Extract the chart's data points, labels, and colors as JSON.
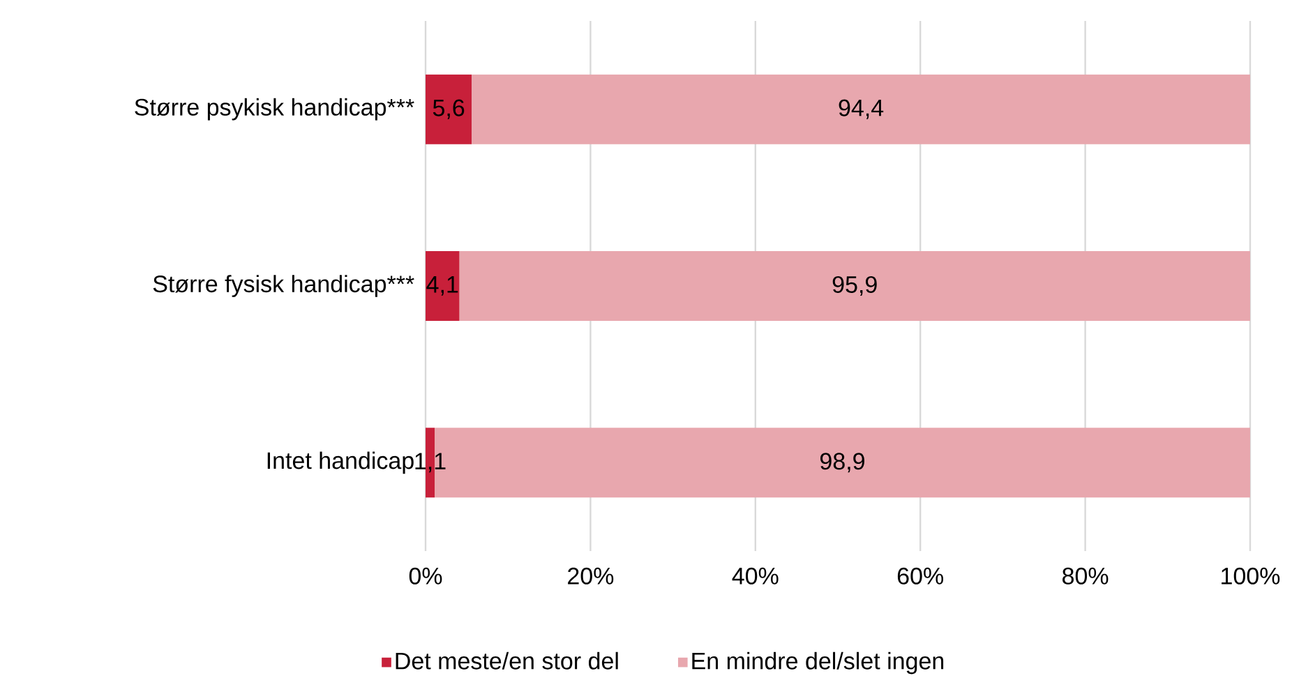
{
  "chart_data": {
    "type": "bar",
    "orientation": "horizontal",
    "stacked": true,
    "categories": [
      "Større psykisk handicap***",
      "Større fysisk handicap***",
      "Intet handicap"
    ],
    "series": [
      {
        "name": "Det meste/en stor del",
        "color": "#c8203a",
        "values": [
          5.6,
          4.1,
          1.1
        ],
        "value_labels": [
          "5,6",
          "4,1",
          "1,1"
        ]
      },
      {
        "name": "En mindre del/slet ingen",
        "color": "#e8a7ae",
        "values": [
          94.4,
          95.9,
          98.9
        ],
        "value_labels": [
          "94,4",
          "95,9",
          "98,9"
        ]
      }
    ],
    "xlim": [
      0,
      100
    ],
    "xticks": [
      {
        "value": 0,
        "label": "0%"
      },
      {
        "value": 20,
        "label": "20%"
      },
      {
        "value": 40,
        "label": "40%"
      },
      {
        "value": 60,
        "label": "60%"
      },
      {
        "value": 80,
        "label": "80%"
      },
      {
        "value": 100,
        "label": "100%"
      }
    ],
    "grid": "x",
    "legend": "bottom"
  }
}
